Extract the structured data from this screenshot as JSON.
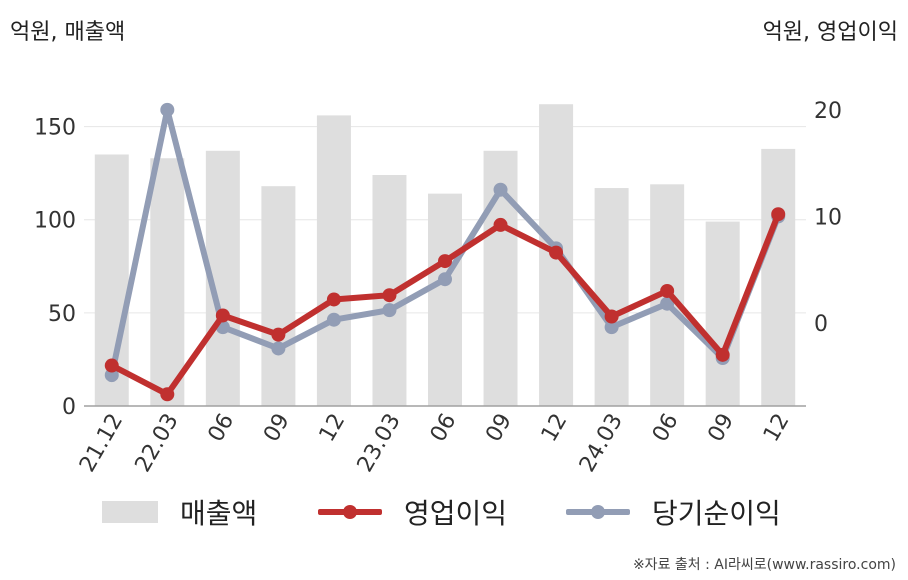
{
  "left_axis_title": "억원, 매출액",
  "right_axis_title": "억원, 영업이익",
  "source": "※자료 출처 : AI라씨로(www.rassiro.com)",
  "colors": {
    "revenue": "#dedede",
    "operating_profit": "#c0302f",
    "net_income": "#929db5",
    "grid": "#e6e6e6",
    "axis": "#a0a0a0"
  },
  "chart_data": {
    "type": "bar",
    "categories": [
      "21.12",
      "22.03",
      "06",
      "09",
      "12",
      "23.03",
      "06",
      "09",
      "12",
      "24.03",
      "06",
      "09",
      "12"
    ],
    "left_axis": {
      "ylim": [
        0,
        175
      ],
      "ticks": [
        0,
        50,
        100,
        150
      ]
    },
    "right_axis": {
      "ylim": [
        -7.8,
        22.8
      ],
      "ticks": [
        0,
        10,
        20
      ]
    },
    "grid": true,
    "legend_position": "bottom",
    "series": [
      {
        "name": "매출액",
        "type": "bar",
        "axis": "left",
        "values": [
          135,
          133,
          137,
          118,
          156,
          124,
          114,
          137,
          162,
          117,
          119,
          99,
          138
        ]
      },
      {
        "name": "영업이익",
        "type": "line",
        "axis": "right",
        "values": [
          -4.0,
          -6.7,
          0.7,
          -1.1,
          2.2,
          2.6,
          5.8,
          9.2,
          6.6,
          0.6,
          3.0,
          -3.0,
          10.2
        ]
      },
      {
        "name": "당기순이익",
        "type": "line",
        "axis": "right",
        "values": [
          -4.9,
          20.0,
          -0.4,
          -2.4,
          0.3,
          1.2,
          4.1,
          12.5,
          7.0,
          -0.4,
          1.8,
          -3.3,
          10.0
        ]
      }
    ]
  }
}
